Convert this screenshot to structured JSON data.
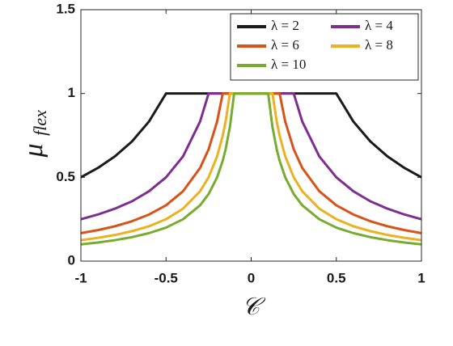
{
  "chart_data": {
    "type": "line",
    "xlabel": "𝒞",
    "ylabel": "μ",
    "ylabel_subscript": "flex",
    "x": [
      -1,
      -0.9,
      -0.8,
      -0.7,
      -0.6,
      -0.5,
      -0.4,
      -0.3,
      -0.25,
      -0.2,
      -0.167,
      -0.15,
      -0.125,
      -0.1,
      0,
      0.1,
      0.125,
      0.15,
      0.167,
      0.2,
      0.25,
      0.3,
      0.4,
      0.5,
      0.6,
      0.7,
      0.8,
      0.9,
      1
    ],
    "series": [
      {
        "name": "λ = 2",
        "color": "#1a1a1a",
        "values": [
          0.5,
          0.556,
          0.625,
          0.714,
          0.833,
          1,
          1,
          1,
          1,
          1,
          1,
          1,
          1,
          1,
          1,
          1,
          1,
          1,
          1,
          1,
          1,
          1,
          1,
          1,
          0.833,
          0.714,
          0.625,
          0.556,
          0.5
        ]
      },
      {
        "name": "λ = 4",
        "color": "#7e2f8e",
        "values": [
          0.25,
          0.278,
          0.313,
          0.357,
          0.417,
          0.5,
          0.625,
          0.833,
          1,
          1,
          1,
          1,
          1,
          1,
          1,
          1,
          1,
          1,
          1,
          1,
          1,
          0.833,
          0.625,
          0.5,
          0.417,
          0.357,
          0.313,
          0.278,
          0.25
        ]
      },
      {
        "name": "λ = 6",
        "color": "#d95319",
        "values": [
          0.167,
          0.185,
          0.208,
          0.238,
          0.278,
          0.333,
          0.417,
          0.556,
          0.667,
          0.833,
          1,
          1,
          1,
          1,
          1,
          1,
          1,
          1,
          1,
          0.833,
          0.667,
          0.556,
          0.417,
          0.333,
          0.278,
          0.238,
          0.208,
          0.185,
          0.167
        ]
      },
      {
        "name": "λ = 8",
        "color": "#edb120",
        "values": [
          0.125,
          0.139,
          0.156,
          0.179,
          0.208,
          0.25,
          0.313,
          0.417,
          0.5,
          0.625,
          0.749,
          0.833,
          1,
          1,
          1,
          1,
          1,
          0.833,
          0.749,
          0.625,
          0.5,
          0.417,
          0.313,
          0.25,
          0.208,
          0.179,
          0.156,
          0.139,
          0.125
        ]
      },
      {
        "name": "λ = 10",
        "color": "#77ac30",
        "values": [
          0.1,
          0.111,
          0.125,
          0.143,
          0.167,
          0.2,
          0.25,
          0.333,
          0.4,
          0.5,
          0.599,
          0.667,
          0.8,
          1,
          1,
          1,
          0.8,
          0.667,
          0.599,
          0.5,
          0.4,
          0.333,
          0.25,
          0.2,
          0.167,
          0.143,
          0.125,
          0.111,
          0.1
        ]
      }
    ],
    "xlim": [
      -1,
      1
    ],
    "ylim": [
      0,
      1.5
    ],
    "xticks": [
      -1,
      -0.5,
      0,
      0.5,
      1
    ],
    "yticks": [
      0,
      0.5,
      1,
      1.5
    ],
    "legend": "upper right",
    "legend_columns": 2
  }
}
